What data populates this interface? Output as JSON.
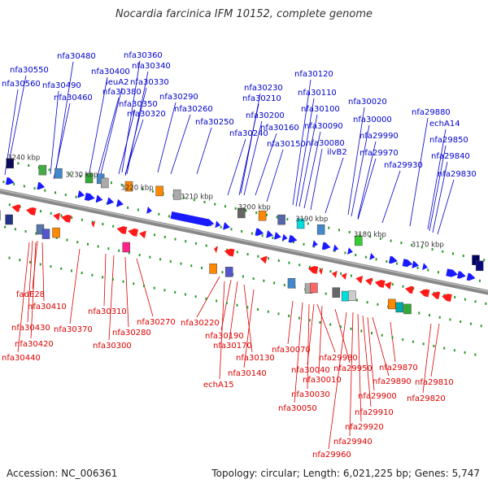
{
  "title": "Nocardia farcinica IFM 10152, complete genome",
  "footer": {
    "accession": "Accession: NC_006361",
    "summary": "Topology: circular; Length: 6,021,225 bp; Genes: 5,747"
  },
  "colors": {
    "forward_gene_label": "#0000cc",
    "reverse_gene_label": "#dd0000",
    "forward_arrow": "#1a1aff",
    "reverse_arrow": "#ff1a1a",
    "backbone": "#888888",
    "tick_dots": "#2a9a2a"
  },
  "scale": {
    "unit": "kbp",
    "ticks": [
      "3240 kbp",
      "3230 kbp",
      "3220 kbp",
      "3210 kbp",
      "3200 kbp",
      "3190 kbp",
      "3180 kbp",
      "3170 kbp"
    ]
  },
  "forward_genes": [
    "nfa30550",
    "nfa30560",
    "nfa30480",
    "nfa30490",
    "nfa30460",
    "nfa30400",
    "leuA2",
    "nfa30380",
    "nfa30360",
    "nfa30340",
    "nfa30330",
    "nfa30350",
    "nfa30320",
    "nfa30290",
    "nfa30260",
    "nfa30250",
    "nfa30230",
    "nfa30210",
    "nfa30240",
    "nfa30200",
    "nfa30160",
    "nfa30150",
    "nfa30120",
    "nfa30110",
    "nfa30100",
    "nfa30090",
    "nfa30080",
    "ilvB2",
    "nfa30020",
    "nfa30000",
    "nfa29990",
    "nfa29970",
    "nfa29930",
    "nfa29880",
    "echA14",
    "nfa29850",
    "nfa29840",
    "nfa29830"
  ],
  "reverse_genes": [
    "fadE28",
    "nfa30410",
    "nfa30430",
    "nfa30420",
    "nfa30440",
    "nfa30370",
    "nfa30310",
    "nfa30300",
    "nfa30280",
    "nfa30270",
    "nfa30220",
    "nfa30190",
    "nfa30170",
    "echA15",
    "nfa30140",
    "nfa30130",
    "nfa30070",
    "nfa29980",
    "nfa30040",
    "nfa29950",
    "nfa30010",
    "nfa30030",
    "nfa30050",
    "nfa29890",
    "nfa29900",
    "nfa29910",
    "nfa29920",
    "nfa29940",
    "nfa29960",
    "nfa29870",
    "nfa29810",
    "nfa29820"
  ]
}
